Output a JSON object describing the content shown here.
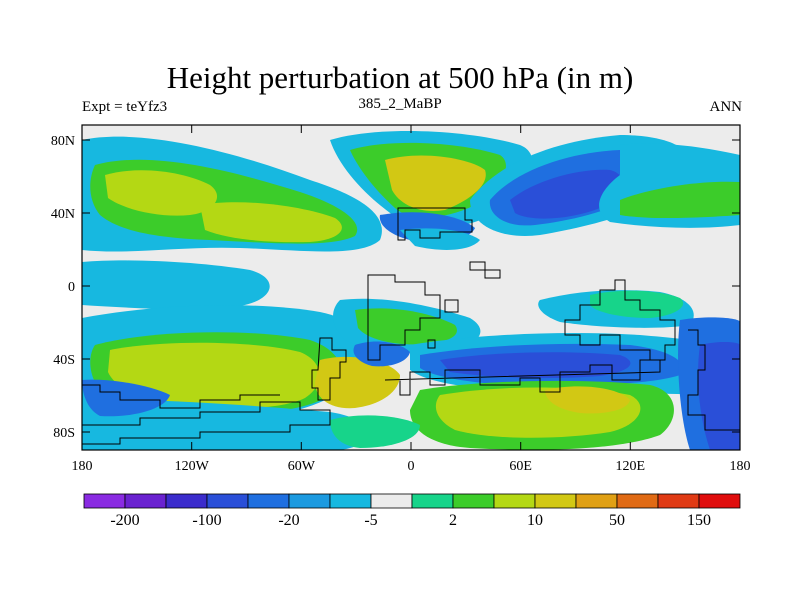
{
  "title": "Height perturbation at 500 hPa (in m)",
  "subtitle_left": "Expt = teYfz3",
  "subtitle_center": "385_2_MaBP",
  "subtitle_right": "ANN",
  "map": {
    "lat_ticks": [
      "80N",
      "40N",
      "0",
      "40S",
      "80S"
    ],
    "lon_ticks": [
      "180",
      "120W",
      "60W",
      "0",
      "60E",
      "120E",
      "180"
    ]
  },
  "colorbar": {
    "colors": [
      "#8a2be2",
      "#6a22d0",
      "#3b2ccc",
      "#2a4fd8",
      "#1f6fe0",
      "#1c9ae0",
      "#17b8e0",
      "#ececec",
      "#17d48a",
      "#3ccc2a",
      "#b4d814",
      "#d2c814",
      "#e0a014",
      "#e06a14",
      "#e03a14",
      "#e00d0d"
    ],
    "labels": [
      "-200",
      "-100",
      "-20",
      "-5",
      "2",
      "10",
      "50",
      "150"
    ]
  }
}
